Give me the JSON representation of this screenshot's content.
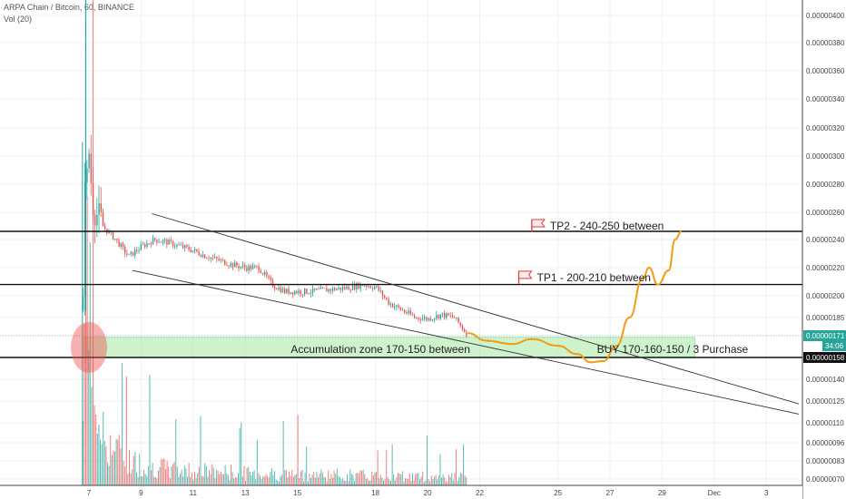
{
  "header": {
    "symbol_line": "ARPA Chain / Bitcoin, 60, BINANCE",
    "volume_label": "Vol (20)"
  },
  "colors": {
    "up": "#26a69a",
    "down": "#ef5350",
    "forecast": "#f39c12",
    "zone": "#a5e8a0",
    "grid": "#eef0f3"
  },
  "chart_data": {
    "type": "candlestick",
    "symbol": "ARPA Chain / Bitcoin",
    "interval": "60",
    "exchange": "BINANCE",
    "ylim": [
      6.5e-07,
      4.15e-06
    ],
    "y_ticks": [
      "0.00000400",
      "0.00000380",
      "0.00000360",
      "0.00000340",
      "0.00000320",
      "0.00000300",
      "0.00000280",
      "0.00000260",
      "0.00000240",
      "0.00000220",
      "0.00000200",
      "0.00000185",
      "0.00000171",
      "0.00000158",
      "0.00000140",
      "0.00000125",
      "0.00000110",
      "0.00000096",
      "0.00000083",
      "0.00000070"
    ],
    "x_ticks": [
      "7",
      "9",
      "11",
      "13",
      "15",
      "18",
      "20",
      "22",
      "25",
      "27",
      "29",
      "Dec",
      "3"
    ],
    "x_tick_dates": [
      "2019-11-07",
      "2019-11-09",
      "2019-11-11",
      "2019-11-13",
      "2019-11-15",
      "2019-11-18",
      "2019-11-20",
      "2019-11-22",
      "2019-11-25",
      "2019-11-27",
      "2019-11-29",
      "2019-12-01",
      "2019-12-03"
    ],
    "price_path": [
      {
        "d": "2019-11-06 18:00",
        "p": 1.9e-06
      },
      {
        "d": "2019-11-06 20:00",
        "p": 3e-06
      },
      {
        "d": "2019-11-06 22:00",
        "p": 2.8e-06
      },
      {
        "d": "2019-11-07 00:00",
        "p": 3.1e-06
      },
      {
        "d": "2019-11-07 02:00",
        "p": 2.7e-06
      },
      {
        "d": "2019-11-07 06:00",
        "p": 2.6e-06
      },
      {
        "d": "2019-11-07 12:00",
        "p": 2.5e-06
      },
      {
        "d": "2019-11-08 00:00",
        "p": 2.4e-06
      },
      {
        "d": "2019-11-08 12:00",
        "p": 2.28e-06
      },
      {
        "d": "2019-11-09 00:00",
        "p": 2.35e-06
      },
      {
        "d": "2019-11-09 12:00",
        "p": 2.4e-06
      },
      {
        "d": "2019-11-10 00:00",
        "p": 2.38e-06
      },
      {
        "d": "2019-11-10 12:00",
        "p": 2.35e-06
      },
      {
        "d": "2019-11-11 00:00",
        "p": 2.32e-06
      },
      {
        "d": "2019-11-11 12:00",
        "p": 2.28e-06
      },
      {
        "d": "2019-11-12 00:00",
        "p": 2.25e-06
      },
      {
        "d": "2019-11-12 12:00",
        "p": 2.22e-06
      },
      {
        "d": "2019-11-13 00:00",
        "p": 2.2e-06
      },
      {
        "d": "2019-11-13 12:00",
        "p": 2.2e-06
      },
      {
        "d": "2019-11-14 00:00",
        "p": 2.08e-06
      },
      {
        "d": "2019-11-14 12:00",
        "p": 2.03e-06
      },
      {
        "d": "2019-11-15 00:00",
        "p": 2.03e-06
      },
      {
        "d": "2019-11-15 12:00",
        "p": 2.03e-06
      },
      {
        "d": "2019-11-16 12:00",
        "p": 2.05e-06
      },
      {
        "d": "2019-11-17 00:00",
        "p": 2.06e-06
      },
      {
        "d": "2019-11-17 12:00",
        "p": 2.08e-06
      },
      {
        "d": "2019-11-18 00:00",
        "p": 2.06e-06
      },
      {
        "d": "2019-11-18 12:00",
        "p": 1.95e-06
      },
      {
        "d": "2019-11-19 00:00",
        "p": 1.9e-06
      },
      {
        "d": "2019-11-19 12:00",
        "p": 1.85e-06
      },
      {
        "d": "2019-11-20 00:00",
        "p": 1.84e-06
      },
      {
        "d": "2019-11-20 12:00",
        "p": 1.87e-06
      },
      {
        "d": "2019-11-21 00:00",
        "p": 1.85e-06
      },
      {
        "d": "2019-11-21 12:00",
        "p": 1.72e-06
      }
    ],
    "volume_path": [
      {
        "d": "2019-11-06 18:00",
        "v": 0.15
      },
      {
        "d": "2019-11-06 22:00",
        "v": 1.0
      },
      {
        "d": "2019-11-07 02:00",
        "v": 0.25
      },
      {
        "d": "2019-11-07 12:00",
        "v": 0.12
      },
      {
        "d": "2019-11-08 12:00",
        "v": 0.06
      },
      {
        "d": "2019-11-10 00:00",
        "v": 0.04
      },
      {
        "d": "2019-11-13 00:00",
        "v": 0.03
      },
      {
        "d": "2019-11-17 00:00",
        "v": 0.025
      },
      {
        "d": "2019-11-21 12:00",
        "v": 0.02
      }
    ],
    "horizontal_levels": [
      {
        "name": "tp2_line",
        "value": 2.46e-06,
        "label": "0.00000246"
      },
      {
        "name": "tp1_line",
        "value": 2.08e-06,
        "label": "0.00000208"
      },
      {
        "name": "support_line",
        "value": 1.58e-06,
        "label": "0.00000158"
      }
    ],
    "last_price": {
      "value": 1.71e-06,
      "label": "0.00000171",
      "countdown": "34:06"
    },
    "trendlines": [
      {
        "name": "upper-trendline",
        "from": {
          "d": "2019-11-09 10:00",
          "p": 2.59e-06
        },
        "to": {
          "d": "2019-12-04 06:00",
          "p": 1.23e-06
        }
      },
      {
        "name": "lower-trendline",
        "from": {
          "d": "2019-11-08 16:00",
          "p": 2.18e-06
        },
        "to": {
          "d": "2019-12-04 06:00",
          "p": 1.16e-06
        }
      }
    ],
    "accumulation_zone": {
      "from": "2019-11-06 18:00",
      "to": "2019-11-30 06:00",
      "high": 1.7e-06,
      "low": 1.58e-06
    },
    "forecast_path": [
      {
        "d": "2019-11-21 13:00",
        "p": 1.73e-06
      },
      {
        "d": "2019-11-22 06:00",
        "p": 1.68e-06
      },
      {
        "d": "2019-11-23 06:00",
        "p": 1.66e-06
      },
      {
        "d": "2019-11-24 00:00",
        "p": 1.69e-06
      },
      {
        "d": "2019-11-25 00:00",
        "p": 1.65e-06
      },
      {
        "d": "2019-11-25 18:00",
        "p": 1.6e-06
      },
      {
        "d": "2019-11-26 06:00",
        "p": 1.54e-06
      },
      {
        "d": "2019-11-26 18:00",
        "p": 1.55e-06
      },
      {
        "d": "2019-11-27 06:00",
        "p": 1.65e-06
      },
      {
        "d": "2019-11-27 18:00",
        "p": 1.85e-06
      },
      {
        "d": "2019-11-28 06:00",
        "p": 2.12e-06
      },
      {
        "d": "2019-11-28 12:00",
        "p": 2.2e-06
      },
      {
        "d": "2019-11-28 20:00",
        "p": 2.08e-06
      },
      {
        "d": "2019-11-29 06:00",
        "p": 2.18e-06
      },
      {
        "d": "2019-11-29 12:00",
        "p": 2.4e-06
      },
      {
        "d": "2019-11-29 18:00",
        "p": 2.46e-06
      }
    ],
    "annotations": {
      "tp2": {
        "text": "TP2 - 240-250 between",
        "d": "2019-11-24 00:00",
        "p": 2.5e-06
      },
      "tp1": {
        "text": "TP1 - 200-210 between",
        "d": "2019-11-23 12:00",
        "p": 2.13e-06
      },
      "zone": {
        "text": "Accumulation zone 170-150 between",
        "d": "2019-11-14 18:00",
        "p": 1.63e-06
      },
      "buy": {
        "text": "BUY 170-160-150 / 3 Purchase",
        "d": "2019-11-26 12:00",
        "p": 1.63e-06
      }
    },
    "highlight_marker": {
      "d": "2019-11-07 00:00",
      "p": 1.64e-06
    }
  }
}
